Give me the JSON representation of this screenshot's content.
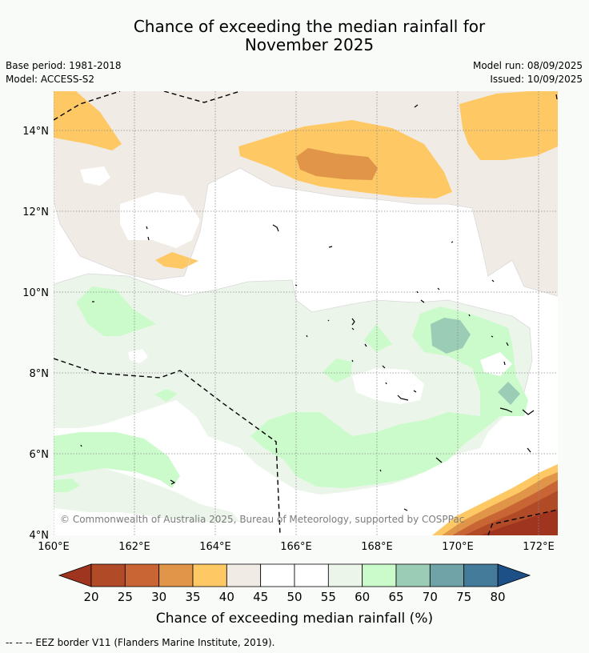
{
  "header": {
    "title_line1": "Chance of exceeding the median rainfall for",
    "title_line2": "November 2025",
    "base_period": "Base period: 1981-2018",
    "model": "Model: ACCESS-S2",
    "model_run": "Model run: 08/09/2025",
    "issued": "Issued: 10/09/2025"
  },
  "map": {
    "lon_range": [
      160,
      172.5
    ],
    "lat_range": [
      4,
      15
    ],
    "x_ticks": [
      "160°E",
      "162°E",
      "164°E",
      "166°E",
      "168°E",
      "170°E",
      "172°E"
    ],
    "y_ticks": [
      "4°N",
      "6°N",
      "8°N",
      "10°N",
      "12°N",
      "14°N"
    ],
    "copyright": "© Commonwealth of Australia 2025, Bureau of Meteorology, supported by COSPPac",
    "gridlines": true
  },
  "colorbar": {
    "labels": [
      "20",
      "25",
      "30",
      "35",
      "40",
      "45",
      "50",
      "55",
      "60",
      "65",
      "70",
      "75",
      "80"
    ],
    "colors": [
      "#a0351f",
      "#b04a27",
      "#c96534",
      "#e09548",
      "#fec864",
      "#f1ebe6",
      "#ffffff",
      "#ffffff",
      "#ebf5ea",
      "#cbfbcb",
      "#9bccb6",
      "#6fa3a8",
      "#447a9a",
      "#1e5088"
    ],
    "title": "Chance of exceeding median rainfall (%)"
  },
  "footer": {
    "legend": "--  --  -- EEZ border V11 (Flanders Marine Institute, 2019)."
  }
}
